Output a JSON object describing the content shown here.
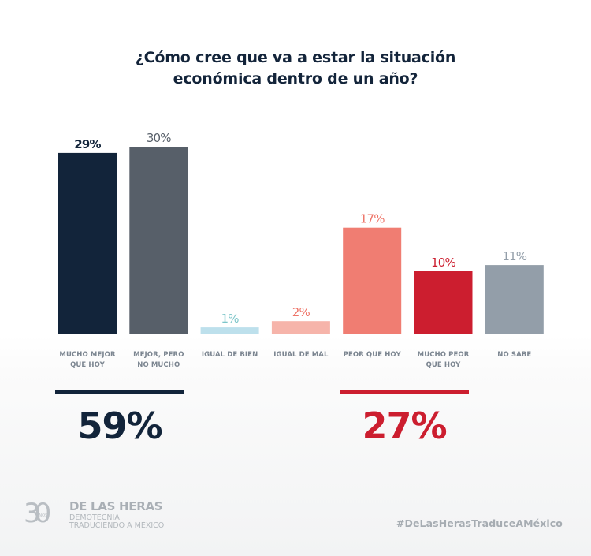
{
  "chart_data": {
    "type": "bar",
    "title": "¿Cómo cree que va a estar la situación económica dentro de un año?",
    "title_lines": [
      "¿Cómo cree que va a estar la situación",
      "económica dentro de un año?"
    ],
    "categories": [
      [
        "MUCHO MEJOR",
        "QUE HOY"
      ],
      [
        "MEJOR, PERO",
        "NO MUCHO"
      ],
      [
        "IGUAL DE BIEN"
      ],
      [
        "IGUAL DE MAL"
      ],
      [
        "PEOR QUE HOY"
      ],
      [
        "MUCHO PEOR",
        "QUE HOY"
      ],
      [
        "NO SABE"
      ]
    ],
    "values": [
      29,
      30,
      1,
      2,
      17,
      10,
      11
    ],
    "value_labels": [
      "29%",
      "30%",
      "1%",
      "2%",
      "17%",
      "10%",
      "11%"
    ],
    "bar_colors": [
      "#12243a",
      "#575f69",
      "#bde0ec",
      "#f6b4aa",
      "#f07d72",
      "#cc1e2f",
      "#939ea9"
    ],
    "label_colors": [
      "#12243a",
      "#575f69",
      "#7cc5c9",
      "#ee7468",
      "#ee7468",
      "#cc1e2f",
      "#939ea9"
    ],
    "xlabel": "",
    "ylabel": "",
    "ylim": [
      0,
      30
    ],
    "grid": false,
    "legend": "none"
  },
  "summaries": [
    {
      "value": "59%",
      "color": "#12243a"
    },
    {
      "value": "27%",
      "color": "#cc1e2f"
    }
  ],
  "footer": {
    "logo_number": "30",
    "logo_anos": "AÑOS",
    "logo_name": "DE LAS HERAS",
    "logo_sub1": "DEMOTECNIA",
    "logo_sub2": "TRADUCIENDO A MÉXICO",
    "hashtag": "#DeLasHerasTraduceAMéxico"
  }
}
